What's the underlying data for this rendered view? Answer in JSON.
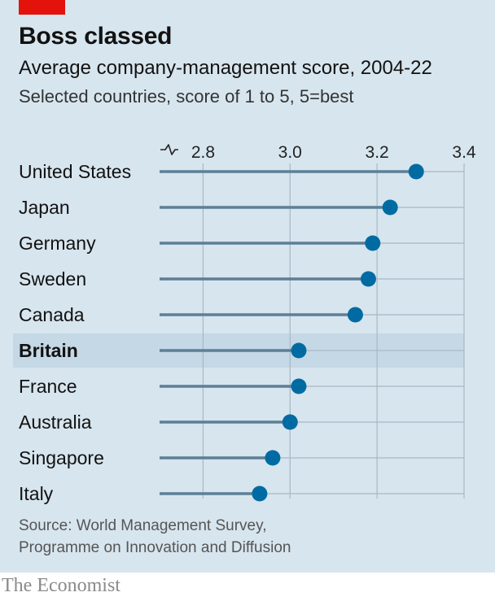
{
  "title": "Boss classed",
  "subtitle": "Average company-management score, 2004-22",
  "note": "Selected countries, score of 1 to 5, 5=best",
  "source": {
    "line1": "Source: World Management Survey,",
    "line2": "Programme on Innovation and Diffusion"
  },
  "brand": "The Economist",
  "colors": {
    "background": "#d7e5ee",
    "highlight": "#c4d8e5",
    "dot": "#006ba2",
    "stem": "#5d7f96",
    "grid": "#aab8c3",
    "accent": "#e3120b"
  },
  "chart_data": {
    "type": "dot",
    "x_axis": {
      "min": 2.7,
      "max": 3.4,
      "ticks": [
        2.8,
        3.0,
        3.2,
        3.4
      ],
      "tick_labels": [
        "2.8",
        "3.0",
        "3.2",
        "3.4"
      ],
      "broken_axis": true,
      "position": "top"
    },
    "highlight": "Britain",
    "categories": [
      "United States",
      "Japan",
      "Germany",
      "Sweden",
      "Canada",
      "Britain",
      "France",
      "Australia",
      "Singapore",
      "Italy"
    ],
    "values": [
      3.29,
      3.23,
      3.19,
      3.18,
      3.15,
      3.02,
      3.02,
      3.0,
      2.96,
      2.93
    ]
  }
}
